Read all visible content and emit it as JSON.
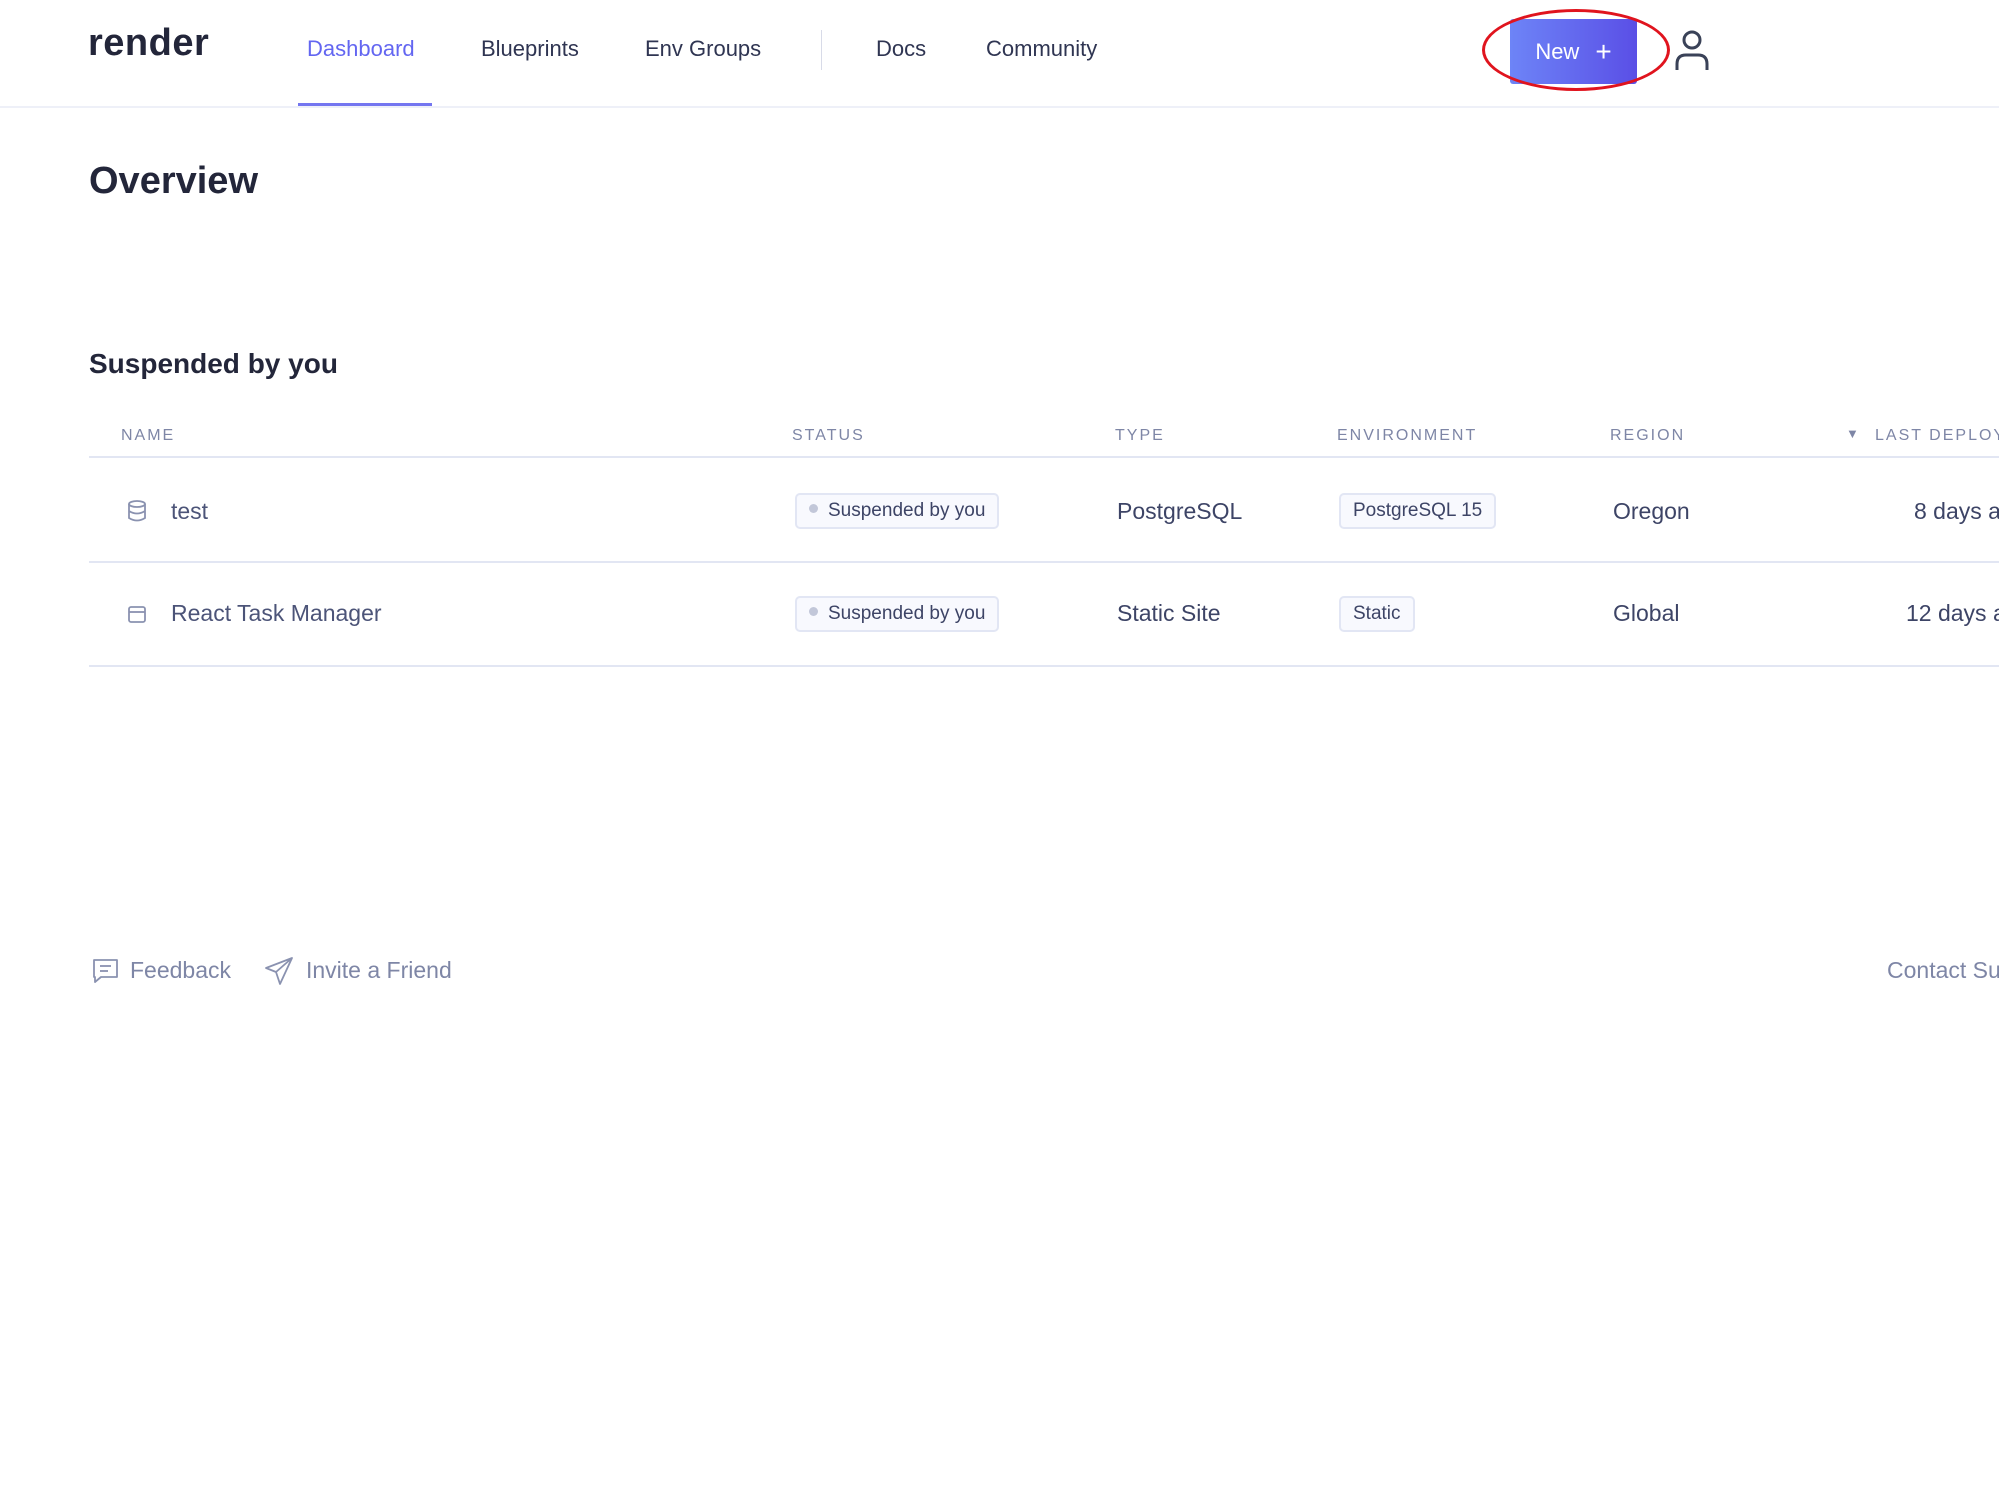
{
  "header": {
    "logo": "render",
    "nav": [
      {
        "label": "Dashboard",
        "active": true
      },
      {
        "label": "Blueprints"
      },
      {
        "label": "Env Groups"
      },
      {
        "label": "Docs"
      },
      {
        "label": "Community"
      }
    ],
    "new_button": "New",
    "new_icon": "plus-icon",
    "user_icon": "user-icon"
  },
  "page_title": "Overview",
  "section": {
    "title": "Suspended by you",
    "columns": [
      "NAME",
      "STATUS",
      "TYPE",
      "ENVIRONMENT",
      "REGION",
      "LAST DEPLOY"
    ],
    "rows": [
      {
        "icon": "database-icon",
        "name": "test",
        "status": "Suspended by you",
        "type": "PostgreSQL",
        "environment": "PostgreSQL 15",
        "region": "Oregon",
        "last_deploy": "8 days a"
      },
      {
        "icon": "static-site-icon",
        "name": "React Task Manager",
        "status": "Suspended by you",
        "type": "Static Site",
        "environment": "Static",
        "region": "Global",
        "last_deploy": "12 days a"
      }
    ]
  },
  "footer": {
    "feedback": "Feedback",
    "invite": "Invite a Friend",
    "contact": "Contact Su"
  },
  "colors": {
    "accent": "#6366f1",
    "annotation": "#e0141e"
  }
}
